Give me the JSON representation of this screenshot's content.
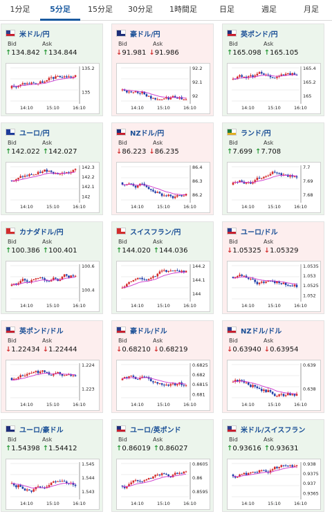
{
  "tabs": [
    {
      "label": "1分足",
      "active": false
    },
    {
      "label": "5分足",
      "active": true
    },
    {
      "label": "15分足",
      "active": false
    },
    {
      "label": "30分足",
      "active": false
    },
    {
      "label": "1時間足",
      "active": false
    },
    {
      "label": "日足",
      "active": false
    },
    {
      "label": "週足",
      "active": false
    },
    {
      "label": "月足",
      "active": false
    }
  ],
  "labels": {
    "bid": "Bid",
    "ask": "Ask"
  },
  "colors": {
    "up": "#2a9a3a",
    "down": "#d23030",
    "ma": "#cc33cc",
    "up_candle": "#d42a2a",
    "down_candle": "#1e3ea8"
  },
  "cards": [
    {
      "pair": "米ドル/円",
      "flag": "us-flag",
      "trend": "up",
      "bid": "134.842",
      "ask": "134.844",
      "x_ticks": [
        "14:10",
        "15:10",
        "16:10"
      ],
      "y_ticks": [
        "135.2",
        "135"
      ]
    },
    {
      "pair": "豪ドル/円",
      "flag": "au-flag",
      "trend": "down",
      "bid": "91.981",
      "ask": "91.986",
      "x_ticks": [
        "14:10",
        "15:10",
        "16:10"
      ],
      "y_ticks": [
        "92.2",
        "92.1",
        "92"
      ]
    },
    {
      "pair": "英ポンド/円",
      "flag": "gb-flag",
      "trend": "up",
      "bid": "165.098",
      "ask": "165.105",
      "x_ticks": [
        "14:10",
        "15:10",
        "16:10"
      ],
      "y_ticks": [
        "165.4",
        "165.2",
        "165"
      ]
    },
    {
      "pair": "ユーロ/円",
      "flag": "eu-flag",
      "trend": "up",
      "bid": "142.022",
      "ask": "142.027",
      "x_ticks": [
        "14:10",
        "15:10",
        "16:10"
      ],
      "y_ticks": [
        "142.3",
        "142.2",
        "142.1",
        "142"
      ]
    },
    {
      "pair": "NZドル/円",
      "flag": "nz-flag",
      "trend": "down",
      "bid": "86.223",
      "ask": "86.235",
      "x_ticks": [
        "14:10",
        "15:10",
        "16:10"
      ],
      "y_ticks": [
        "86.4",
        "86.3",
        "86.2"
      ]
    },
    {
      "pair": "ランド/円",
      "flag": "za-flag",
      "trend": "up",
      "bid": "7.699",
      "ask": "7.708",
      "x_ticks": [
        "14:10",
        "15:10",
        "16:10"
      ],
      "y_ticks": [
        "7.7",
        "7.69",
        "7.68"
      ]
    },
    {
      "pair": "カナダドル/円",
      "flag": "ca-flag",
      "trend": "up",
      "bid": "100.386",
      "ask": "100.401",
      "x_ticks": [
        "14:10",
        "15:10",
        "16:10"
      ],
      "y_ticks": [
        "100.6",
        "100.4"
      ]
    },
    {
      "pair": "スイスフラン/円",
      "flag": "ch-flag",
      "trend": "up",
      "bid": "144.020",
      "ask": "144.036",
      "x_ticks": [
        "14:10",
        "15:10",
        "16:10"
      ],
      "y_ticks": [
        "144.2",
        "144.1",
        "144"
      ]
    },
    {
      "pair": "ユーロ/ドル",
      "flag": "eu-us-flag",
      "trend": "down",
      "bid": "1.05325",
      "ask": "1.05329",
      "x_ticks": [
        "14:10",
        "15:10",
        "16:10"
      ],
      "y_ticks": [
        "1.0535",
        "1.053",
        "1.0525",
        "1.052"
      ]
    },
    {
      "pair": "英ポンド/ドル",
      "flag": "gb-us-flag",
      "trend": "down",
      "bid": "1.22434",
      "ask": "1.22444",
      "x_ticks": [
        "14:10",
        "15:10",
        "16:10"
      ],
      "y_ticks": [
        "1.224",
        "1.223"
      ]
    },
    {
      "pair": "豪ドル/ドル",
      "flag": "au-us-flag",
      "trend": "down",
      "bid": "0.68210",
      "ask": "0.68219",
      "x_ticks": [
        "14:10",
        "15:10",
        "16:10"
      ],
      "y_ticks": [
        "0.6825",
        "0.682",
        "0.6815",
        "0.681"
      ]
    },
    {
      "pair": "NZドル/ドル",
      "flag": "nz-us-flag",
      "trend": "down",
      "bid": "0.63940",
      "ask": "0.63954",
      "x_ticks": [
        "14:10",
        "15:10",
        "16:10"
      ],
      "y_ticks": [
        "0.639",
        "0.638"
      ]
    },
    {
      "pair": "ユーロ/豪ドル",
      "flag": "eu-au-flag",
      "trend": "up",
      "bid": "1.54398",
      "ask": "1.54412",
      "x_ticks": [
        "14:10",
        "15:10",
        "16:10"
      ],
      "y_ticks": [
        "1.545",
        "1.544",
        "1.543"
      ]
    },
    {
      "pair": "ユーロ/英ポンド",
      "flag": "eu-gb-flag",
      "trend": "up",
      "bid": "0.86019",
      "ask": "0.86027",
      "x_ticks": [
        "14:10",
        "15:10",
        "16:10"
      ],
      "y_ticks": [
        "0.8605",
        "0.86",
        "0.8595"
      ]
    },
    {
      "pair": "米ドル/スイスフラン",
      "flag": "us-ch-flag",
      "trend": "up",
      "bid": "0.93616",
      "ask": "0.93631",
      "x_ticks": [
        "14:10",
        "15:10",
        "16:10"
      ],
      "y_ticks": [
        "0.938",
        "0.9375",
        "0.937",
        "0.9365"
      ]
    }
  ]
}
